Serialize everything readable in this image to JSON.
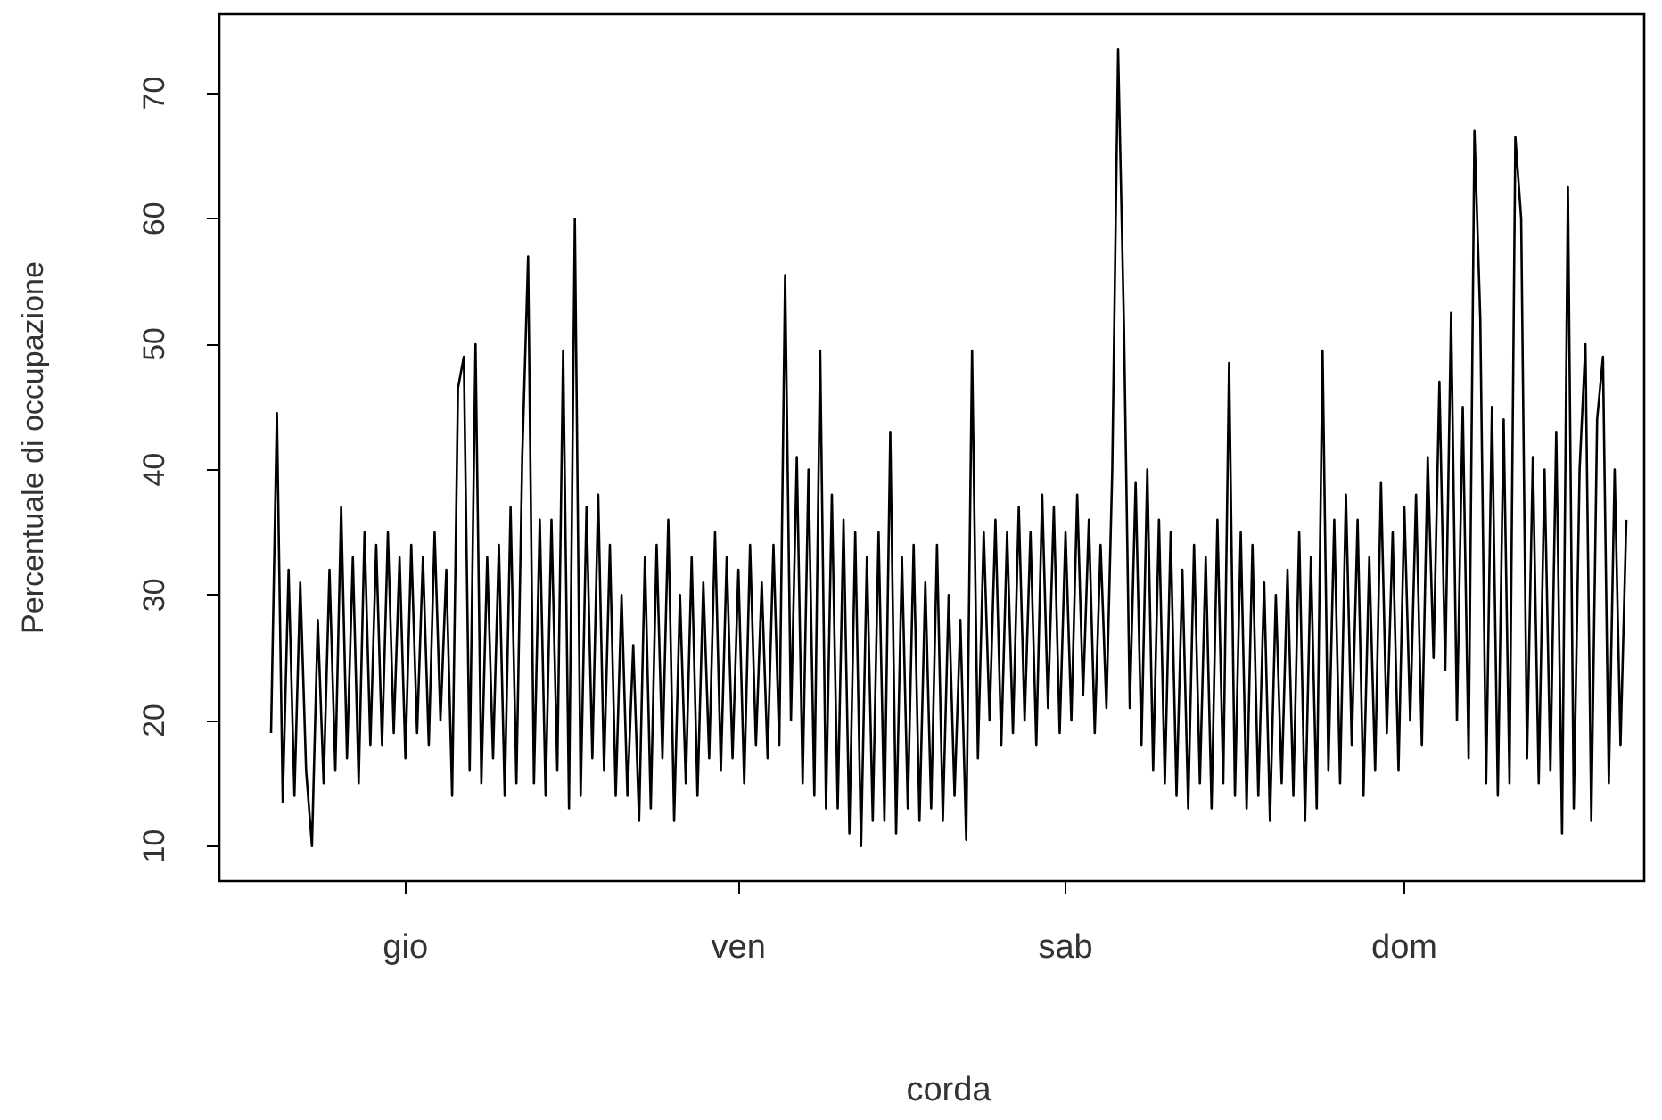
{
  "chart_data": {
    "type": "line",
    "xlabel": "corda",
    "ylabel": "Percentuale di occupazione",
    "grid": false,
    "marker": "none",
    "ylim": [
      7.2,
      76.3
    ],
    "categories": [
      null,
      null,
      null,
      null,
      null,
      null,
      null,
      null,
      null,
      null,
      null,
      null,
      null,
      null,
      null,
      null,
      null,
      null,
      null,
      null,
      null,
      null,
      null,
      "gio",
      null,
      null,
      null,
      null,
      null,
      null,
      null,
      null,
      null,
      null,
      null,
      null,
      null,
      null,
      null,
      null,
      null,
      null,
      null,
      null,
      null,
      null,
      null,
      null,
      null,
      null,
      null,
      null,
      null,
      null,
      null,
      null,
      null,
      null,
      null,
      null,
      null,
      null,
      null,
      null,
      null,
      null,
      null,
      null,
      null,
      null,
      null,
      null,
      null,
      null,
      null,
      null,
      null,
      null,
      null,
      null,
      "ven",
      null,
      null,
      null,
      null,
      null,
      null,
      null,
      null,
      null,
      null,
      null,
      null,
      null,
      null,
      null,
      null,
      null,
      null,
      null,
      null,
      null,
      null,
      null,
      null,
      null,
      null,
      null,
      null,
      null,
      null,
      null,
      null,
      null,
      null,
      null,
      null,
      null,
      null,
      null,
      null,
      null,
      null,
      null,
      null,
      null,
      null,
      null,
      null,
      null,
      null,
      null,
      null,
      null,
      null,
      null,
      "sab",
      null,
      null,
      null,
      null,
      null,
      null,
      null,
      null,
      null,
      null,
      null,
      null,
      null,
      null,
      null,
      null,
      null,
      null,
      null,
      null,
      null,
      null,
      null,
      null,
      null,
      null,
      null,
      null,
      null,
      null,
      null,
      null,
      null,
      null,
      null,
      null,
      null,
      null,
      null,
      null,
      null,
      null,
      null,
      null,
      null,
      null,
      null,
      null,
      null,
      null,
      null,
      null,
      null,
      null,
      null,
      null,
      null,
      "dom",
      null,
      null,
      null,
      null,
      null,
      null,
      null,
      null,
      null,
      null,
      null,
      null,
      null,
      null,
      null,
      null,
      null,
      null,
      null,
      null,
      null,
      null,
      null,
      null,
      null,
      null,
      null,
      null,
      null,
      null,
      null,
      null,
      null,
      null,
      null,
      null,
      null,
      null
    ],
    "yticks": [
      10,
      20,
      30,
      40,
      50,
      60,
      70
    ],
    "series": [
      {
        "color": "#000000",
        "values": [
          19,
          44.5,
          13.5,
          32,
          14,
          31,
          16,
          10,
          28,
          15,
          32,
          16,
          37,
          17,
          33,
          15,
          35,
          18,
          34,
          18,
          35,
          19,
          33,
          17,
          34,
          19,
          33,
          18,
          35,
          20,
          32,
          14,
          46.5,
          49,
          16,
          50,
          15,
          33,
          17,
          34,
          14,
          37,
          15,
          41,
          57,
          15,
          36,
          14,
          36,
          16,
          49.5,
          13,
          60,
          14,
          37,
          17,
          38,
          16,
          34,
          14,
          30,
          14,
          26,
          12,
          33,
          13,
          34,
          17,
          36,
          12,
          30,
          15,
          33,
          14,
          31,
          17,
          35,
          16,
          33,
          17,
          32,
          15,
          34,
          18,
          31,
          17,
          34,
          18,
          55.5,
          20,
          41,
          15,
          40,
          14,
          49.5,
          13,
          38,
          13,
          36,
          11,
          35,
          10,
          33,
          12,
          35,
          12,
          43,
          11,
          33,
          13,
          34,
          12,
          31,
          13,
          34,
          12,
          30,
          14,
          28,
          10.5,
          49.5,
          17,
          35,
          20,
          36,
          18,
          35,
          19,
          37,
          20,
          35,
          18,
          38,
          21,
          37,
          19,
          35,
          20,
          38,
          22,
          36,
          19,
          34,
          21,
          40,
          73.5,
          51.5,
          21,
          39,
          18,
          40,
          16,
          36,
          15,
          35,
          14,
          32,
          13,
          34,
          15,
          33,
          13,
          36,
          15,
          48.5,
          14,
          35,
          13,
          34,
          14,
          31,
          12,
          30,
          15,
          32,
          14,
          35,
          12,
          33,
          13,
          49.5,
          16,
          36,
          15,
          38,
          18,
          36,
          14,
          33,
          16,
          39,
          19,
          35,
          16,
          37,
          20,
          38,
          18,
          41,
          25,
          47,
          24,
          52.5,
          20,
          45,
          17,
          67,
          52,
          15,
          45,
          14,
          44,
          15,
          66.5,
          60,
          17,
          41,
          15,
          40,
          16,
          43,
          11,
          62.5,
          13,
          40,
          50,
          12,
          44,
          49,
          15,
          40,
          18,
          36
        ]
      }
    ]
  }
}
